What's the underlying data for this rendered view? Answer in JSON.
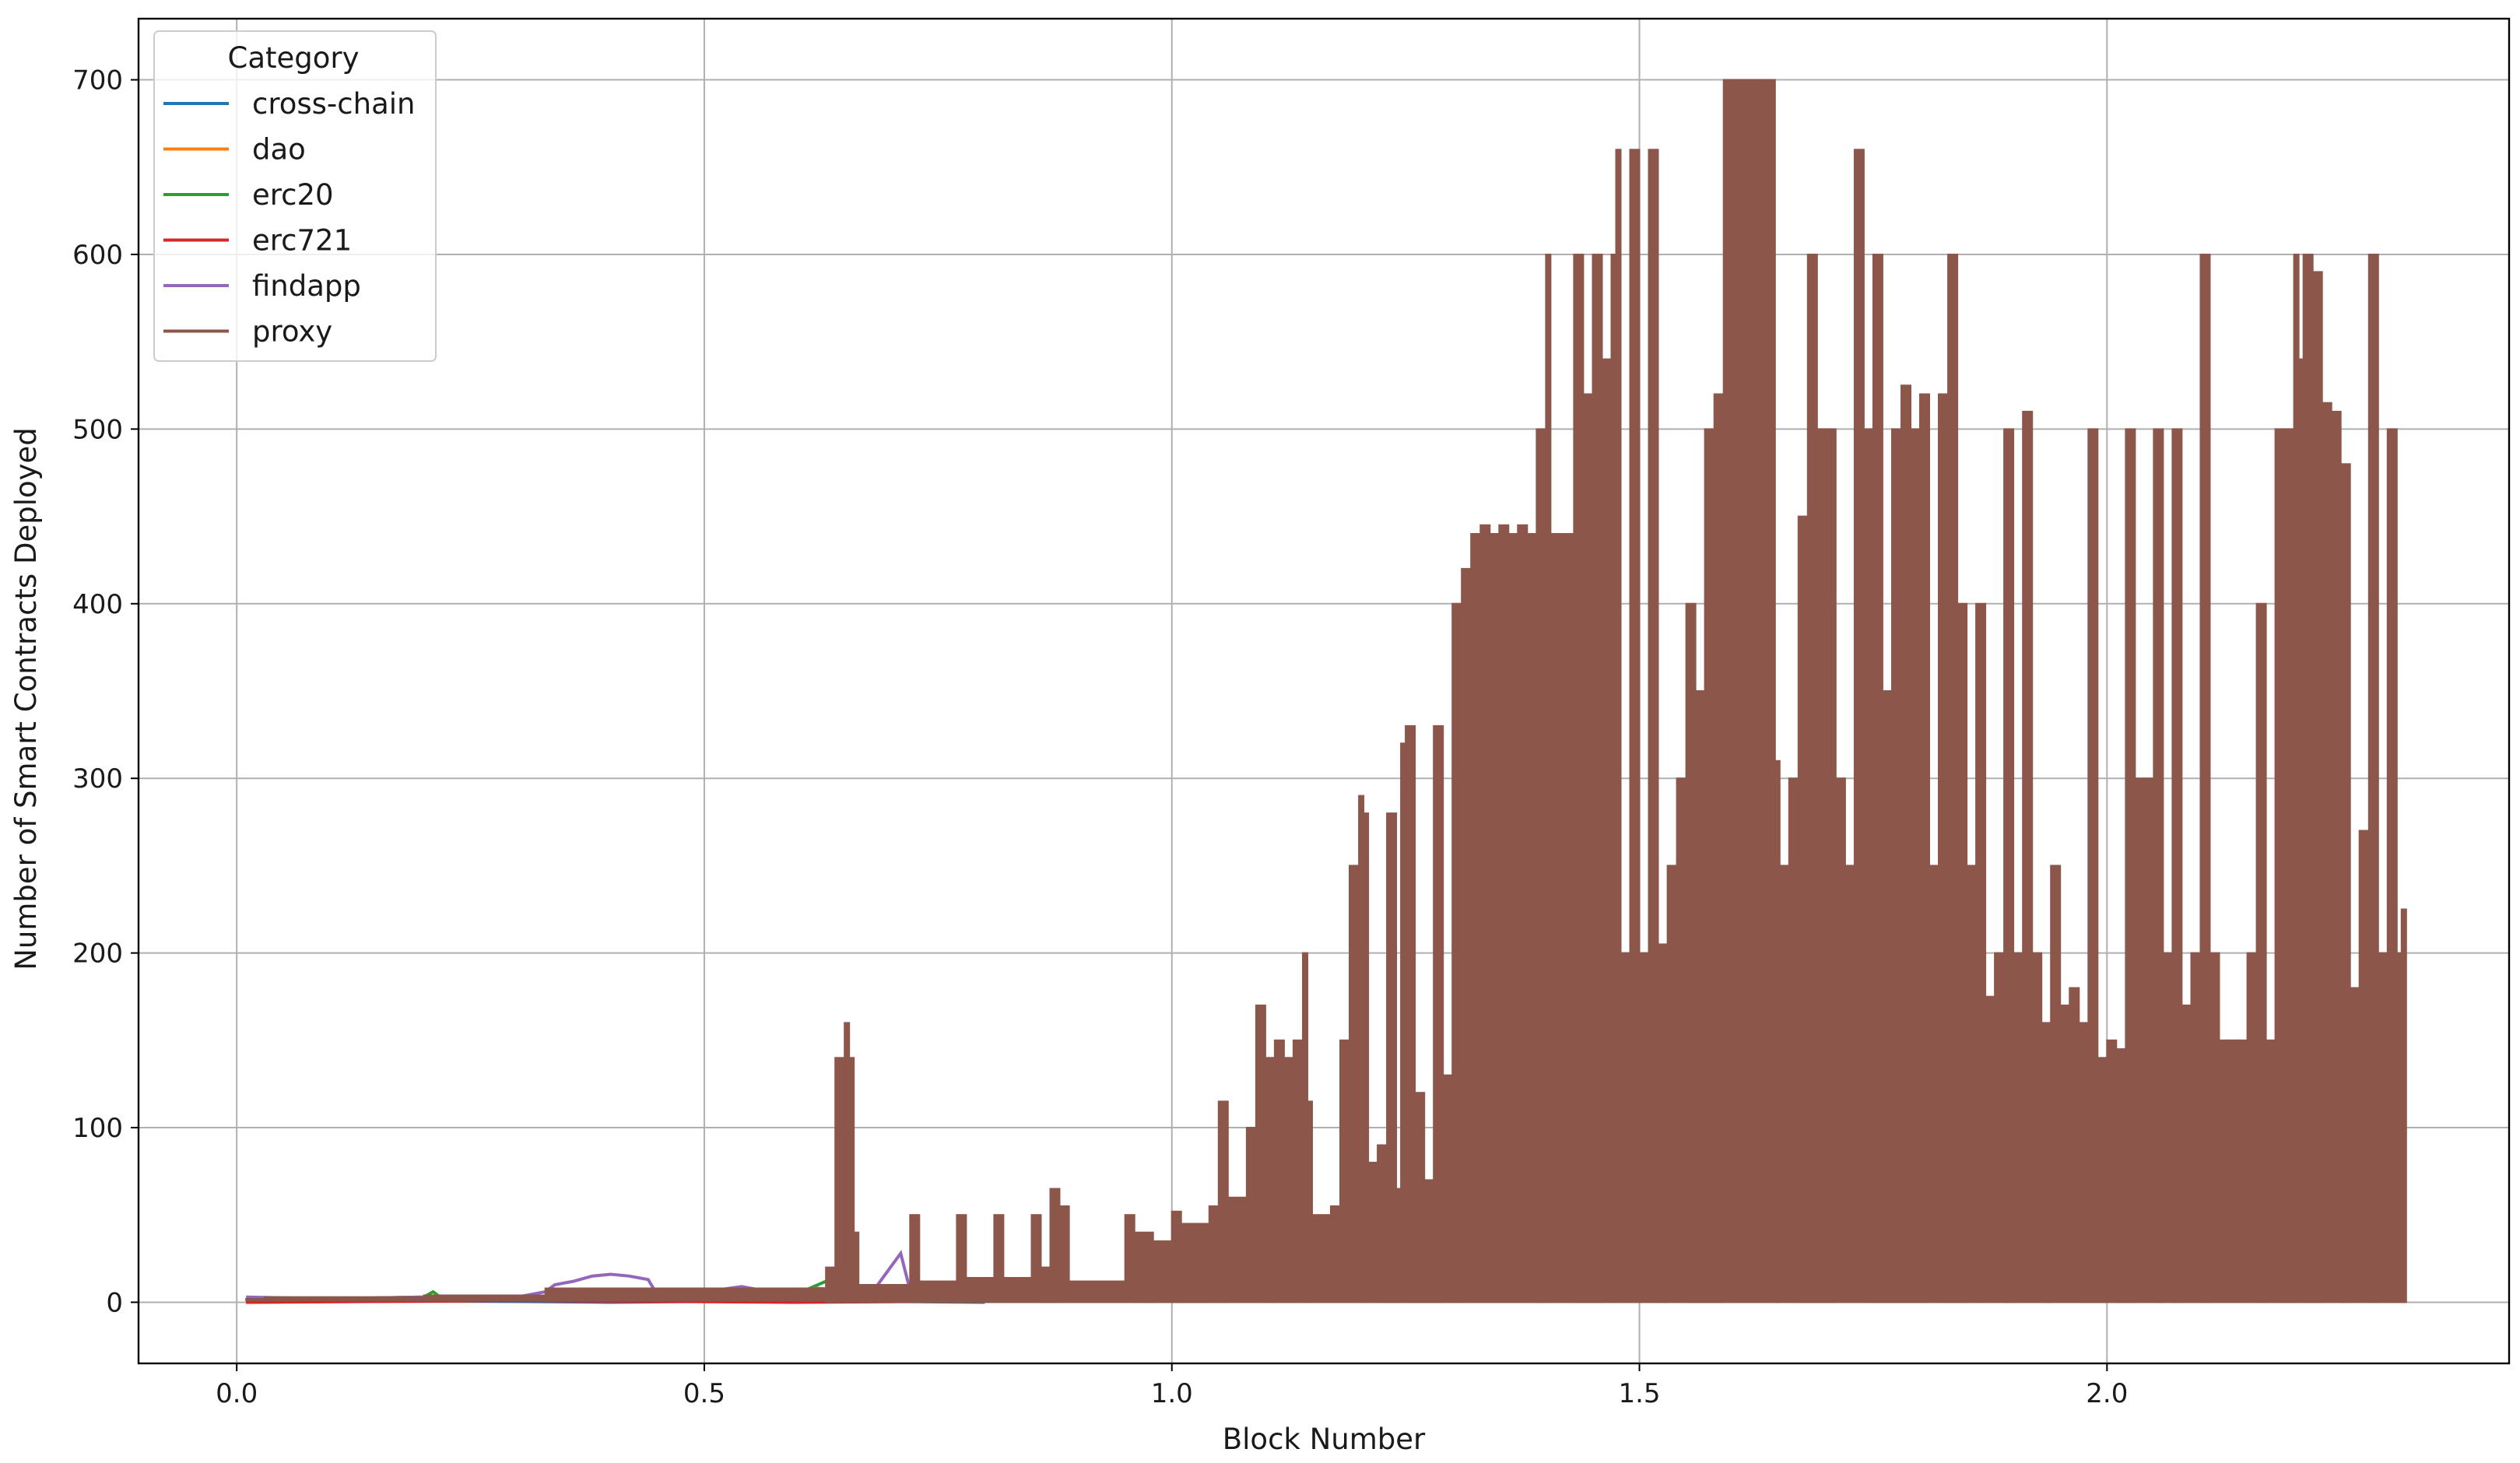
{
  "chart_data": {
    "type": "line",
    "title": "",
    "xlabel": "Block Number",
    "ylabel": "Number of Smart Contracts Deployed",
    "xlim": [
      -0.105,
      2.43
    ],
    "ylim": [
      -35,
      735
    ],
    "xticks": [
      0.0,
      0.5,
      1.0,
      1.5,
      2.0
    ],
    "xtick_labels": [
      "0.0",
      "0.5",
      "1.0",
      "1.5",
      "2.0"
    ],
    "yticks": [
      0,
      100,
      200,
      300,
      400,
      500,
      600,
      700
    ],
    "ytick_labels": [
      "0",
      "100",
      "200",
      "300",
      "400",
      "500",
      "600",
      "700"
    ],
    "grid": true,
    "legend": {
      "title": "Category",
      "placement": "top-left"
    },
    "series": [
      {
        "name": "cross-chain",
        "color": "#1f77b4",
        "points": [
          [
            0.01,
            0
          ],
          [
            0.2,
            1
          ],
          [
            0.4,
            0
          ],
          [
            0.6,
            1
          ],
          [
            0.8,
            0
          ]
        ]
      },
      {
        "name": "dao",
        "color": "#ff7f0e",
        "points": [
          [
            0.01,
            1
          ],
          [
            0.2,
            2
          ],
          [
            0.4,
            1
          ],
          [
            0.6,
            2
          ],
          [
            0.8,
            1
          ]
        ]
      },
      {
        "name": "erc20",
        "color": "#2ca02c",
        "points": [
          [
            0.01,
            1
          ],
          [
            0.1,
            2
          ],
          [
            0.2,
            3
          ],
          [
            0.21,
            6
          ],
          [
            0.22,
            2
          ],
          [
            0.3,
            3
          ],
          [
            0.4,
            4
          ],
          [
            0.5,
            3
          ],
          [
            0.55,
            6
          ],
          [
            0.6,
            5
          ],
          [
            0.63,
            12
          ],
          [
            0.64,
            3
          ],
          [
            0.7,
            4
          ],
          [
            0.8,
            5
          ],
          [
            0.9,
            6
          ],
          [
            0.95,
            8
          ],
          [
            1.0,
            5
          ]
        ]
      },
      {
        "name": "erc721",
        "color": "#d62728",
        "points": [
          [
            0.01,
            0
          ],
          [
            0.3,
            1
          ],
          [
            0.6,
            0
          ],
          [
            0.9,
            1
          ]
        ]
      },
      {
        "name": "findapp",
        "color": "#9467bd",
        "points": [
          [
            0.01,
            3
          ],
          [
            0.1,
            2
          ],
          [
            0.2,
            3
          ],
          [
            0.3,
            3
          ],
          [
            0.33,
            6
          ],
          [
            0.34,
            10
          ],
          [
            0.36,
            12
          ],
          [
            0.38,
            15
          ],
          [
            0.4,
            16
          ],
          [
            0.42,
            15
          ],
          [
            0.44,
            13
          ],
          [
            0.45,
            4
          ],
          [
            0.5,
            6
          ],
          [
            0.54,
            9
          ],
          [
            0.58,
            5
          ],
          [
            0.62,
            8
          ],
          [
            0.68,
            6
          ],
          [
            0.71,
            28
          ],
          [
            0.72,
            7
          ],
          [
            0.8,
            8
          ],
          [
            0.85,
            10
          ],
          [
            0.9,
            9
          ],
          [
            0.95,
            11
          ],
          [
            1.0,
            14
          ]
        ]
      },
      {
        "name": "proxy",
        "color": "#8c564b",
        "envelope_segments": [
          [
            0.01,
            0.03,
            1,
            2
          ],
          [
            0.03,
            0.2,
            1,
            3
          ],
          [
            0.2,
            0.33,
            1,
            4
          ],
          [
            0.33,
            0.63,
            1,
            8
          ],
          [
            0.63,
            0.64,
            0,
            20
          ],
          [
            0.64,
            0.65,
            0,
            140
          ],
          [
            0.65,
            0.655,
            0,
            160
          ],
          [
            0.655,
            0.66,
            0,
            140
          ],
          [
            0.66,
            0.665,
            0,
            40
          ],
          [
            0.665,
            0.72,
            0,
            10
          ],
          [
            0.72,
            0.73,
            0,
            50
          ],
          [
            0.73,
            0.77,
            0,
            12
          ],
          [
            0.77,
            0.78,
            0,
            50
          ],
          [
            0.78,
            0.81,
            0,
            14
          ],
          [
            0.81,
            0.82,
            0,
            50
          ],
          [
            0.82,
            0.85,
            0,
            14
          ],
          [
            0.85,
            0.86,
            0,
            50
          ],
          [
            0.86,
            0.87,
            0,
            20
          ],
          [
            0.87,
            0.88,
            0,
            65
          ],
          [
            0.88,
            0.89,
            0,
            55
          ],
          [
            0.89,
            0.95,
            0,
            12
          ],
          [
            0.95,
            0.96,
            0,
            50
          ],
          [
            0.96,
            0.98,
            0,
            40
          ],
          [
            0.98,
            1.0,
            0,
            35
          ],
          [
            1.0,
            1.01,
            0,
            52
          ],
          [
            1.01,
            1.04,
            0,
            45
          ],
          [
            1.04,
            1.05,
            0,
            55
          ],
          [
            1.05,
            1.06,
            0,
            115
          ],
          [
            1.06,
            1.08,
            0,
            60
          ],
          [
            1.08,
            1.09,
            0,
            100
          ],
          [
            1.09,
            1.1,
            0,
            170
          ],
          [
            1.1,
            1.11,
            0,
            140
          ],
          [
            1.11,
            1.12,
            0,
            150
          ],
          [
            1.12,
            1.13,
            0,
            140
          ],
          [
            1.13,
            1.14,
            0,
            150
          ],
          [
            1.14,
            1.145,
            0,
            200
          ],
          [
            1.145,
            1.15,
            0,
            115
          ],
          [
            1.15,
            1.17,
            0,
            50
          ],
          [
            1.17,
            1.18,
            0,
            55
          ],
          [
            1.18,
            1.19,
            0,
            150
          ],
          [
            1.19,
            1.2,
            0,
            250
          ],
          [
            1.2,
            1.205,
            0,
            290
          ],
          [
            1.205,
            1.21,
            0,
            280
          ],
          [
            1.21,
            1.22,
            0,
            80
          ],
          [
            1.22,
            1.23,
            0,
            90
          ],
          [
            1.23,
            1.24,
            0,
            280
          ],
          [
            1.24,
            1.245,
            0,
            65
          ],
          [
            1.245,
            1.25,
            0,
            320
          ],
          [
            1.25,
            1.26,
            0,
            330
          ],
          [
            1.26,
            1.27,
            0,
            120
          ],
          [
            1.27,
            1.28,
            0,
            70
          ],
          [
            1.28,
            1.29,
            0,
            330
          ],
          [
            1.29,
            1.3,
            0,
            130
          ],
          [
            1.3,
            1.31,
            0,
            400
          ],
          [
            1.31,
            1.32,
            0,
            420
          ],
          [
            1.32,
            1.33,
            0,
            440
          ],
          [
            1.33,
            1.34,
            0,
            445
          ],
          [
            1.34,
            1.35,
            0,
            440
          ],
          [
            1.35,
            1.36,
            0,
            445
          ],
          [
            1.36,
            1.37,
            0,
            440
          ],
          [
            1.37,
            1.38,
            0,
            445
          ],
          [
            1.38,
            1.39,
            0,
            440
          ],
          [
            1.39,
            1.4,
            0,
            500
          ],
          [
            1.4,
            1.405,
            0,
            600
          ],
          [
            1.405,
            1.42,
            0,
            440
          ],
          [
            1.42,
            1.43,
            0,
            440
          ],
          [
            1.43,
            1.44,
            0,
            600
          ],
          [
            1.44,
            1.45,
            0,
            520
          ],
          [
            1.45,
            1.46,
            0,
            600
          ],
          [
            1.46,
            1.47,
            0,
            540
          ],
          [
            1.47,
            1.475,
            0,
            600
          ],
          [
            1.475,
            1.48,
            0,
            660
          ],
          [
            1.48,
            1.49,
            0,
            200
          ],
          [
            1.49,
            1.5,
            0,
            660
          ],
          [
            1.5,
            1.51,
            0,
            200
          ],
          [
            1.51,
            1.52,
            0,
            660
          ],
          [
            1.52,
            1.53,
            0,
            205
          ],
          [
            1.53,
            1.54,
            0,
            250
          ],
          [
            1.54,
            1.55,
            0,
            300
          ],
          [
            1.55,
            1.56,
            0,
            400
          ],
          [
            1.56,
            1.57,
            0,
            350
          ],
          [
            1.57,
            1.58,
            0,
            500
          ],
          [
            1.58,
            1.59,
            0,
            520
          ],
          [
            1.59,
            1.6,
            0,
            700
          ],
          [
            1.6,
            1.62,
            0,
            700
          ],
          [
            1.62,
            1.64,
            0,
            700
          ],
          [
            1.64,
            1.645,
            0,
            700
          ],
          [
            1.645,
            1.65,
            0,
            310
          ],
          [
            1.65,
            1.66,
            0,
            250
          ],
          [
            1.66,
            1.67,
            0,
            300
          ],
          [
            1.67,
            1.68,
            0,
            450
          ],
          [
            1.68,
            1.69,
            0,
            600
          ],
          [
            1.69,
            1.7,
            0,
            500
          ],
          [
            1.7,
            1.71,
            0,
            500
          ],
          [
            1.71,
            1.72,
            0,
            300
          ],
          [
            1.72,
            1.73,
            0,
            250
          ],
          [
            1.73,
            1.74,
            0,
            660
          ],
          [
            1.74,
            1.75,
            0,
            500
          ],
          [
            1.75,
            1.76,
            0,
            600
          ],
          [
            1.76,
            1.77,
            0,
            350
          ],
          [
            1.77,
            1.78,
            0,
            500
          ],
          [
            1.78,
            1.79,
            0,
            525
          ],
          [
            1.79,
            1.8,
            0,
            500
          ],
          [
            1.8,
            1.81,
            0,
            520
          ],
          [
            1.81,
            1.82,
            0,
            250
          ],
          [
            1.82,
            1.83,
            0,
            520
          ],
          [
            1.83,
            1.84,
            0,
            600
          ],
          [
            1.84,
            1.85,
            0,
            400
          ],
          [
            1.85,
            1.86,
            0,
            250
          ],
          [
            1.86,
            1.87,
            0,
            400
          ],
          [
            1.87,
            1.88,
            0,
            175
          ],
          [
            1.88,
            1.89,
            0,
            200
          ],
          [
            1.89,
            1.9,
            0,
            500
          ],
          [
            1.9,
            1.91,
            0,
            200
          ],
          [
            1.91,
            1.92,
            0,
            510
          ],
          [
            1.92,
            1.93,
            0,
            200
          ],
          [
            1.93,
            1.94,
            0,
            160
          ],
          [
            1.94,
            1.95,
            0,
            250
          ],
          [
            1.95,
            1.96,
            0,
            170
          ],
          [
            1.96,
            1.97,
            0,
            180
          ],
          [
            1.97,
            1.98,
            0,
            160
          ],
          [
            1.98,
            1.99,
            0,
            500
          ],
          [
            1.99,
            2.0,
            0,
            140
          ],
          [
            2.0,
            2.01,
            0,
            150
          ],
          [
            2.01,
            2.02,
            0,
            145
          ],
          [
            2.02,
            2.03,
            0,
            500
          ],
          [
            2.03,
            2.04,
            0,
            300
          ],
          [
            2.04,
            2.05,
            0,
            300
          ],
          [
            2.05,
            2.06,
            0,
            500
          ],
          [
            2.06,
            2.07,
            0,
            200
          ],
          [
            2.07,
            2.08,
            0,
            500
          ],
          [
            2.08,
            2.09,
            0,
            170
          ],
          [
            2.09,
            2.1,
            0,
            200
          ],
          [
            2.1,
            2.11,
            0,
            600
          ],
          [
            2.11,
            2.12,
            0,
            200
          ],
          [
            2.12,
            2.13,
            0,
            150
          ],
          [
            2.13,
            2.14,
            0,
            150
          ],
          [
            2.14,
            2.15,
            0,
            150
          ],
          [
            2.15,
            2.16,
            0,
            200
          ],
          [
            2.16,
            2.17,
            0,
            400
          ],
          [
            2.17,
            2.18,
            0,
            150
          ],
          [
            2.18,
            2.19,
            0,
            500
          ],
          [
            2.19,
            2.2,
            0,
            500
          ],
          [
            2.2,
            2.205,
            0,
            600
          ],
          [
            2.205,
            2.21,
            0,
            540
          ],
          [
            2.21,
            2.22,
            0,
            600
          ],
          [
            2.22,
            2.23,
            0,
            590
          ],
          [
            2.23,
            2.24,
            0,
            515
          ],
          [
            2.24,
            2.25,
            0,
            510
          ],
          [
            2.25,
            2.26,
            0,
            480
          ],
          [
            2.26,
            2.27,
            0,
            180
          ],
          [
            2.27,
            2.28,
            0,
            270
          ],
          [
            2.28,
            2.29,
            0,
            600
          ],
          [
            2.29,
            2.3,
            0,
            200
          ],
          [
            2.3,
            2.305,
            0,
            500
          ],
          [
            2.305,
            2.31,
            0,
            500
          ],
          [
            2.31,
            2.315,
            0,
            200
          ],
          [
            2.315,
            2.32,
            0,
            225
          ]
        ]
      }
    ]
  }
}
